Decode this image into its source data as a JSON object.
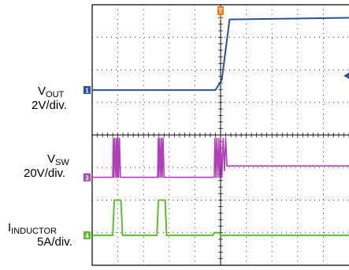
{
  "chart_data": {
    "type": "line",
    "title": "",
    "xlabel": "",
    "ylabel": "",
    "grid": true,
    "grid_divisions": {
      "x": 10,
      "y": 8
    },
    "ylim": [
      -4,
      4
    ],
    "xlim": [
      0,
      10
    ],
    "trigger_marker": {
      "label": "T",
      "x": 5,
      "color": "#f07c1e"
    },
    "channels": [
      {
        "id": "1",
        "name_main": "V",
        "name_sub": "OUT",
        "scale": "2V/div.",
        "color": "#2b4fa3",
        "points": [
          [
            0,
            1.38
          ],
          [
            4.8,
            1.38
          ],
          [
            5.05,
            1.7
          ],
          [
            5.35,
            3.55
          ],
          [
            10,
            3.6
          ]
        ]
      },
      {
        "id": "3",
        "name_main": "V",
        "name_sub": "SW",
        "scale": "20V/div.",
        "color": "#b03fb8",
        "points": [
          [
            0,
            -1.3
          ],
          [
            0.8,
            -1.3
          ],
          [
            0.82,
            -0.1
          ],
          [
            0.85,
            -1.3
          ],
          [
            0.88,
            -0.1
          ],
          [
            0.92,
            -1.3
          ],
          [
            0.95,
            -0.1
          ],
          [
            0.98,
            -1.3
          ],
          [
            1.0,
            -0.1
          ],
          [
            1.03,
            -1.3
          ],
          [
            1.06,
            -0.1
          ],
          [
            1.1,
            -1.3
          ],
          [
            2.55,
            -1.3
          ],
          [
            2.57,
            -0.1
          ],
          [
            2.6,
            -1.3
          ],
          [
            2.63,
            -0.1
          ],
          [
            2.67,
            -1.3
          ],
          [
            2.7,
            -0.1
          ],
          [
            2.73,
            -1.3
          ],
          [
            2.76,
            -0.1
          ],
          [
            2.8,
            -1.3
          ],
          [
            4.75,
            -1.3
          ],
          [
            4.78,
            -0.1
          ],
          [
            4.82,
            -1.3
          ],
          [
            4.85,
            -0.1
          ],
          [
            4.9,
            -1.3
          ],
          [
            4.93,
            -0.1
          ],
          [
            4.97,
            -1.3
          ],
          [
            5.0,
            -0.1
          ],
          [
            5.05,
            -1.3
          ],
          [
            5.1,
            -0.1
          ],
          [
            5.15,
            -1.1
          ],
          [
            5.2,
            -0.1
          ],
          [
            5.25,
            -0.95
          ],
          [
            10,
            -0.95
          ]
        ]
      },
      {
        "id": "4",
        "name_main": "I",
        "name_sub": "INDUCTOR",
        "scale": "5A/div.",
        "color": "#5bbf2a",
        "points": [
          [
            0,
            -3.08
          ],
          [
            0.8,
            -3.08
          ],
          [
            0.86,
            -2.0
          ],
          [
            1.12,
            -2.0
          ],
          [
            1.18,
            -3.08
          ],
          [
            2.52,
            -3.08
          ],
          [
            2.58,
            -2.0
          ],
          [
            2.84,
            -2.0
          ],
          [
            2.9,
            -3.08
          ],
          [
            4.7,
            -3.08
          ],
          [
            4.75,
            -3.0
          ],
          [
            4.95,
            -3.0
          ],
          [
            5.0,
            -3.08
          ],
          [
            10,
            -3.08
          ]
        ]
      }
    ]
  }
}
